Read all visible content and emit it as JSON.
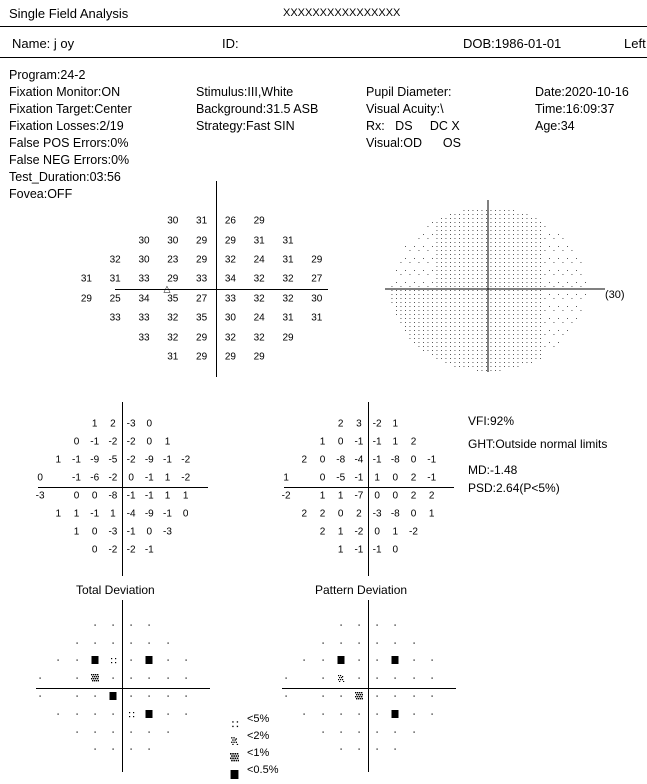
{
  "header": {
    "title": "Single Field Analysis",
    "code": "XXXXXXXXXXXXXXXX",
    "name": "Name: j oy",
    "id": "ID:",
    "dob": "DOB:1986-01-01",
    "eye": "Left"
  },
  "info": {
    "col1": [
      "Program:24-2",
      "Fixation Monitor:ON",
      "Fixation Target:Center",
      "Fixation Losses:2/19",
      "False POS Errors:0%",
      "False NEG Errors:0%",
      "Test_Duration:03:56",
      "Fovea:OFF"
    ],
    "col2": [
      "",
      "Stimulus:III,White",
      "Background:31.5 ASB",
      "Strategy:Fast SIN"
    ],
    "col3": [
      "",
      "Pupil Diameter:",
      "Visual Acuity:\\",
      "Rx:   DS     DC X",
      "Visual:OD      OS"
    ],
    "col4": [
      "Date:2020-10-16",
      "Time:16:09:37",
      "Age:34"
    ]
  },
  "sensitivity": {
    "rows": [
      [
        "30",
        "31",
        "26",
        "29"
      ],
      [
        "30",
        "30",
        "29",
        "29",
        "31",
        "31"
      ],
      [
        "32",
        "30",
        "23",
        "29",
        "32",
        "24",
        "31",
        "29"
      ],
      [
        "31",
        "31",
        "33",
        "29",
        "33",
        "34",
        "32",
        "32",
        "27"
      ],
      [
        "29",
        "25",
        "34",
        "35",
        "27",
        "33",
        "32",
        "32",
        "30"
      ],
      [
        "33",
        "33",
        "32",
        "35",
        "30",
        "24",
        "31",
        "31"
      ],
      [
        "33",
        "32",
        "29",
        "32",
        "32",
        "29"
      ],
      [
        "31",
        "29",
        "29",
        "29"
      ]
    ]
  },
  "grayscale": {
    "label": "(30)"
  },
  "total_deviation": {
    "label": "Total Deviation",
    "rows": [
      [
        "1",
        "2",
        "-3",
        "0"
      ],
      [
        "0",
        "-1",
        "-2",
        "-2",
        "0",
        "1"
      ],
      [
        "1",
        "-1",
        "-9",
        "-5",
        "-2",
        "-9",
        "-1",
        "-2"
      ],
      [
        "0",
        "",
        "-1",
        "-6",
        "-2",
        "0",
        "-1",
        "1",
        "-2"
      ],
      [
        "-3",
        "",
        "0",
        "0",
        "-8",
        "-1",
        "-1",
        "1",
        "1"
      ],
      [
        "1",
        "1",
        "-1",
        "1",
        "-4",
        "-9",
        "-1",
        "0"
      ],
      [
        "1",
        "0",
        "-3",
        "-1",
        "0",
        "-3"
      ],
      [
        "0",
        "-2",
        "-2",
        "-1"
      ]
    ]
  },
  "pattern_deviation": {
    "label": "Pattern Deviation",
    "rows": [
      [
        "2",
        "3",
        "-2",
        "1"
      ],
      [
        "1",
        "0",
        "-1",
        "-1",
        "1",
        "2"
      ],
      [
        "2",
        "0",
        "-8",
        "-4",
        "-1",
        "-8",
        "0",
        "-1"
      ],
      [
        "1",
        "",
        "0",
        "-5",
        "-1",
        "1",
        "0",
        "2",
        "-1"
      ],
      [
        "-2",
        "",
        "1",
        "1",
        "-7",
        "0",
        "0",
        "2",
        "2"
      ],
      [
        "2",
        "2",
        "0",
        "2",
        "-3",
        "-8",
        "0",
        "1"
      ],
      [
        "2",
        "1",
        "-2",
        "0",
        "1",
        "-2"
      ],
      [
        "1",
        "-1",
        "-1",
        "0"
      ]
    ]
  },
  "indices": {
    "vfi": "VFI:92%",
    "ght": "GHT:Outside normal limits",
    "md": "MD:-1.48",
    "psd": "PSD:2.64(P<5%)"
  },
  "legend": {
    "items": [
      {
        "symbol": "p5",
        "label": "<5%"
      },
      {
        "symbol": "p2",
        "label": "<2%"
      },
      {
        "symbol": "p1",
        "label": "<1%"
      },
      {
        "symbol": "p05",
        "label": "<0.5%"
      }
    ]
  },
  "total_prob": {
    "rows": [
      [
        "n",
        "n",
        "n",
        "n"
      ],
      [
        "n",
        "n",
        "n",
        "n",
        "n",
        "n"
      ],
      [
        "n",
        "n",
        "p05",
        "p5",
        "n",
        "p05",
        "n",
        "n"
      ],
      [
        "n",
        "",
        "n",
        "p1",
        "n",
        "n",
        "n",
        "n",
        "n"
      ],
      [
        "n",
        "",
        "n",
        "n",
        "p05",
        "n",
        "n",
        "n",
        "n"
      ],
      [
        "n",
        "n",
        "n",
        "n",
        "p5",
        "p05",
        "n",
        "n"
      ],
      [
        "n",
        "n",
        "n",
        "n",
        "n",
        "n"
      ],
      [
        "n",
        "n",
        "n",
        "n"
      ]
    ]
  },
  "pattern_prob": {
    "rows": [
      [
        "n",
        "n",
        "n",
        "n"
      ],
      [
        "n",
        "n",
        "n",
        "n",
        "n",
        "n"
      ],
      [
        "n",
        "n",
        "p05",
        "n",
        "n",
        "p05",
        "n",
        "n"
      ],
      [
        "n",
        "",
        "n",
        "p2",
        "n",
        "n",
        "n",
        "n",
        "n"
      ],
      [
        "n",
        "",
        "n",
        "n",
        "p1",
        "n",
        "n",
        "n",
        "n"
      ],
      [
        "n",
        "n",
        "n",
        "n",
        "n",
        "p05",
        "n",
        "n"
      ],
      [
        "n",
        "n",
        "n",
        "n",
        "n",
        "n"
      ],
      [
        "n",
        "n",
        "n",
        "n"
      ]
    ]
  }
}
